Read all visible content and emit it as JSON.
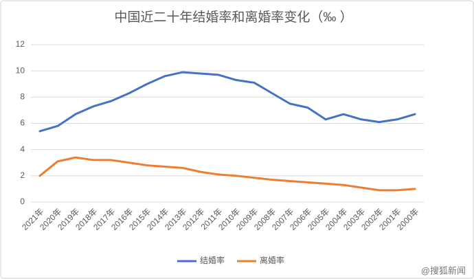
{
  "chart_data": {
    "type": "line",
    "title": "中国近二十年结婚率和离婚率变化（‰ ）",
    "categories": [
      "2021年",
      "2020年",
      "2019年",
      "2018年",
      "2017年",
      "2016年",
      "2015年",
      "2014年",
      "2013年",
      "2012年",
      "2011年",
      "2010年",
      "2009年",
      "2008年",
      "2007年",
      "2006年",
      "2005年",
      "2004年",
      "2003年",
      "2002年",
      "2001年",
      "2000年"
    ],
    "series": [
      {
        "name": "结婚率",
        "color": "#4472c4",
        "values": [
          5.4,
          5.8,
          6.7,
          7.3,
          7.7,
          8.3,
          9.0,
          9.6,
          9.9,
          9.8,
          9.7,
          9.3,
          9.1,
          8.3,
          7.5,
          7.2,
          6.3,
          6.7,
          6.3,
          6.1,
          6.3,
          6.7
        ]
      },
      {
        "name": "离婚率",
        "color": "#ed7d31",
        "values": [
          2.0,
          3.1,
          3.4,
          3.2,
          3.2,
          3.0,
          2.8,
          2.7,
          2.6,
          2.3,
          2.1,
          2.0,
          1.85,
          1.7,
          1.6,
          1.5,
          1.4,
          1.3,
          1.1,
          0.9,
          0.9,
          1.0
        ]
      }
    ],
    "ylim": [
      0,
      12
    ],
    "yticks": [
      0,
      2,
      4,
      6,
      8,
      10,
      12
    ],
    "grid": true,
    "legend": "bottom",
    "watermark": "@搜狐新闻"
  }
}
